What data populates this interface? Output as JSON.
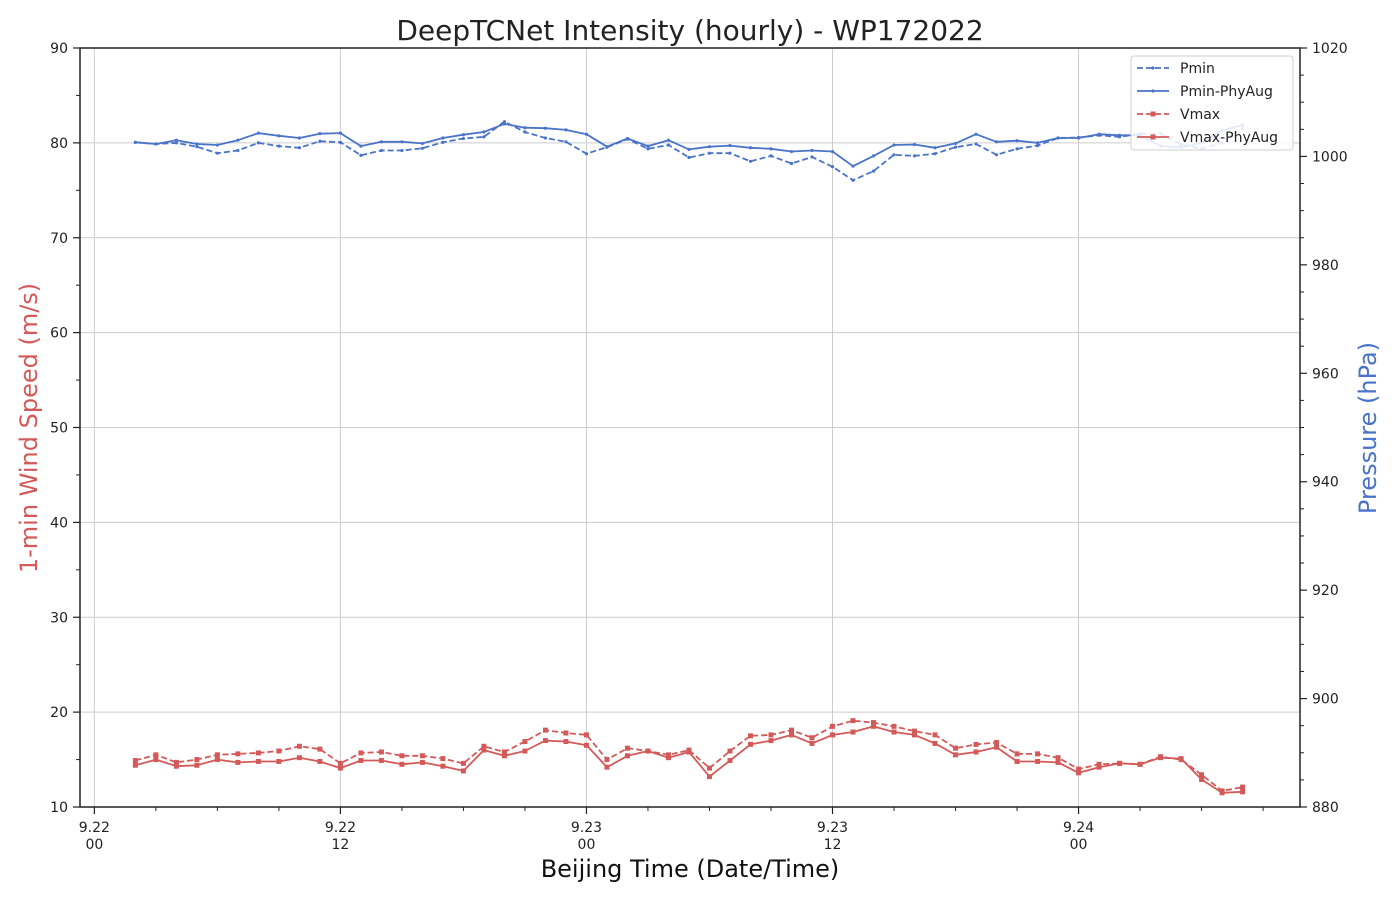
{
  "chart_data": {
    "type": "line",
    "title": "DeepTCNet Intensity (hourly) - WP172022",
    "xlabel": "Beijing Time (Date/Time)",
    "ylabel_left": "1-min Wind Speed (m/s)",
    "ylabel_right": "Pressure (hPa)",
    "ylim_left": [
      10,
      90
    ],
    "ylim_right": [
      880,
      1020
    ],
    "xlim_hours": [
      -0.7,
      58.8
    ],
    "grid": true,
    "legend_position": "top-right",
    "colors": {
      "wind": "#d45a5a",
      "pressure": "#4a74c9"
    },
    "x_ticks": [
      {
        "hour": 0,
        "line1": "9.22",
        "line2": "00"
      },
      {
        "hour": 12,
        "line1": "9.22",
        "line2": "12"
      },
      {
        "hour": 24,
        "line1": "9.23",
        "line2": "00"
      },
      {
        "hour": 36,
        "line1": "9.23",
        "line2": "12"
      },
      {
        "hour": 48,
        "line1": "9.24",
        "line2": "00"
      }
    ],
    "y_ticks_left": [
      10,
      20,
      30,
      40,
      50,
      60,
      70,
      80,
      90
    ],
    "y_ticks_right": [
      880,
      900,
      920,
      940,
      960,
      980,
      1000,
      1020
    ],
    "x_hours": [
      2,
      3,
      4,
      5,
      6,
      7,
      8,
      9,
      10,
      11,
      12,
      13,
      14,
      15,
      16,
      17,
      18,
      19,
      20,
      21,
      22,
      23,
      24,
      25,
      26,
      27,
      28,
      29,
      30,
      31,
      32,
      33,
      34,
      35,
      36,
      37,
      38,
      39,
      40,
      41,
      42,
      43,
      44,
      45,
      46,
      47,
      48,
      49,
      50,
      51,
      52,
      53,
      54,
      55,
      56
    ],
    "series": [
      {
        "name": "Pmin",
        "axis": "right",
        "style": "dashed",
        "values": [
          1002.6,
          1002.3,
          1002.5,
          1001.8,
          1000.6,
          1001.1,
          1002.5,
          1001.9,
          1001.6,
          1002.8,
          1002.6,
          1000.2,
          1001.1,
          1001.1,
          1001.5,
          1002.6,
          1003.3,
          1003.6,
          1006.4,
          1004.5,
          1003.4,
          1002.7,
          1000.5,
          1001.7,
          1003.2,
          1001.4,
          1002.1,
          999.8,
          1000.6,
          1000.6,
          999.1,
          1000.1,
          998.7,
          999.9,
          998.1,
          995.6,
          997.3,
          1000.3,
          1000.1,
          1000.5,
          1001.7,
          1002.3,
          1000.3,
          1001.4,
          1002.0,
          1003.4,
          1003.5,
          1003.9,
          1003.6,
          1004.2,
          1004.2,
          1002.2,
          1001.4,
          1002.5,
          1005.2
        ]
      },
      {
        "name": "Pmin-PhyAug",
        "axis": "right",
        "style": "solid",
        "values": [
          1002.6,
          1002.3,
          1003.0,
          1002.3,
          1002.1,
          1003.0,
          1004.3,
          1003.8,
          1003.4,
          1004.2,
          1004.3,
          1001.9,
          1002.7,
          1002.7,
          1002.4,
          1003.4,
          1004.0,
          1004.5,
          1006.0,
          1005.3,
          1005.2,
          1004.9,
          1004.1,
          1001.8,
          1003.3,
          1001.9,
          1003.0,
          1001.3,
          1001.8,
          1002.0,
          1001.6,
          1001.4,
          1000.9,
          1001.1,
          1000.9,
          998.2,
          1000.1,
          1002.1,
          1002.2,
          1001.6,
          1002.4,
          1004.1,
          1002.7,
          1002.9,
          1002.5,
          1003.4,
          1003.4,
          1004.1,
          1003.9,
          1003.9,
          1001.9,
          1001.7,
          1002.5,
          1004.8,
          1005.8
        ]
      },
      {
        "name": "Vmax",
        "axis": "left",
        "style": "dashed",
        "values": [
          14.9,
          15.5,
          14.7,
          15.0,
          15.5,
          15.6,
          15.7,
          15.9,
          16.4,
          16.1,
          14.6,
          15.7,
          15.8,
          15.4,
          15.4,
          15.1,
          14.6,
          16.4,
          15.8,
          16.9,
          18.1,
          17.8,
          17.6,
          15.0,
          16.2,
          15.9,
          15.5,
          16.0,
          14.1,
          15.9,
          17.5,
          17.6,
          18.1,
          17.3,
          18.5,
          19.1,
          18.9,
          18.5,
          18.0,
          17.6,
          16.2,
          16.6,
          16.8,
          15.6,
          15.6,
          15.2,
          14.0,
          14.5,
          14.6,
          14.5,
          15.3,
          15.0,
          13.4,
          11.7,
          12.1
        ]
      },
      {
        "name": "Vmax-PhyAug",
        "axis": "left",
        "style": "solid",
        "values": [
          14.4,
          15.0,
          14.3,
          14.4,
          15.0,
          14.7,
          14.8,
          14.8,
          15.2,
          14.8,
          14.1,
          14.9,
          14.9,
          14.5,
          14.7,
          14.3,
          13.8,
          16.0,
          15.4,
          15.9,
          17.0,
          16.9,
          16.5,
          14.2,
          15.4,
          15.9,
          15.2,
          15.8,
          13.2,
          14.9,
          16.6,
          17.0,
          17.6,
          16.7,
          17.6,
          17.9,
          18.5,
          17.9,
          17.6,
          16.7,
          15.5,
          15.8,
          16.3,
          14.8,
          14.8,
          14.7,
          13.6,
          14.2,
          14.6,
          14.5,
          15.2,
          15.1,
          12.9,
          11.5,
          11.6
        ]
      }
    ]
  }
}
